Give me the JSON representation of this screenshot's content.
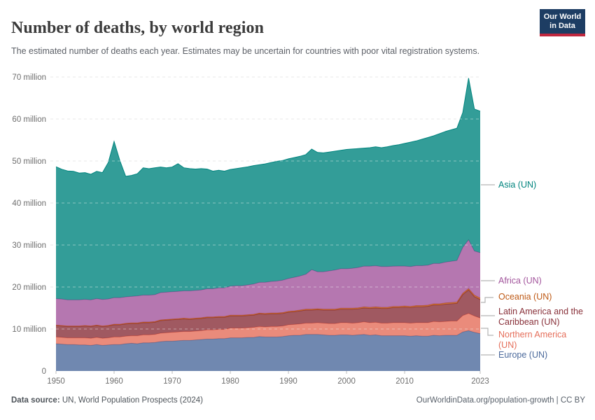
{
  "header": {
    "title": "Number of deaths, by world region",
    "subtitle": "The estimated number of deaths each year. Estimates may be uncertain for countries with poor vital registration systems.",
    "logo": {
      "line1": "Our World",
      "line2": "in Data"
    },
    "logo_colors": {
      "navy": "#1d3d63",
      "red": "#c0273e"
    }
  },
  "footer": {
    "source_label": "Data source:",
    "source_text": "UN, World Population Prospects (2024)",
    "license": "OurWorldinData.org/population-growth | CC BY"
  },
  "legend": [
    {
      "label": "Asia (UN)",
      "color": "#00847E"
    },
    {
      "label": "Africa (UN)",
      "color": "#A2559C"
    },
    {
      "label": "Oceania (UN)",
      "color": "#BE5915"
    },
    {
      "label": "Latin America and the Caribbean (UN)",
      "color": "#883039"
    },
    {
      "label": "Northern America (UN)",
      "color": "#E56E5A"
    },
    {
      "label": "Europe (UN)",
      "color": "#4C6A9C"
    }
  ],
  "chart_data": {
    "type": "area",
    "stacked": true,
    "title": "Number of deaths, by world region",
    "xlabel": "",
    "ylabel": "",
    "unit": "million deaths per year",
    "ylim_millions": [
      0,
      70
    ],
    "grid": "dashed-horizontal",
    "legend_position": "right",
    "x": [
      1950,
      1951,
      1952,
      1953,
      1954,
      1955,
      1956,
      1957,
      1958,
      1959,
      1960,
      1961,
      1962,
      1963,
      1964,
      1965,
      1966,
      1967,
      1968,
      1969,
      1970,
      1971,
      1972,
      1973,
      1974,
      1975,
      1976,
      1977,
      1978,
      1979,
      1980,
      1981,
      1982,
      1983,
      1984,
      1985,
      1986,
      1987,
      1988,
      1989,
      1990,
      1991,
      1992,
      1993,
      1994,
      1995,
      1996,
      1997,
      1998,
      1999,
      2000,
      2001,
      2002,
      2003,
      2004,
      2005,
      2006,
      2007,
      2008,
      2009,
      2010,
      2011,
      2012,
      2013,
      2014,
      2015,
      2016,
      2017,
      2018,
      2019,
      2020,
      2021,
      2022,
      2023
    ],
    "y_ticks": [
      {
        "value": 0,
        "label": "0"
      },
      {
        "value": 10,
        "label": "10 million"
      },
      {
        "value": 20,
        "label": "20 million"
      },
      {
        "value": 30,
        "label": "30 million"
      },
      {
        "value": 40,
        "label": "40 million"
      },
      {
        "value": 50,
        "label": "50 million"
      },
      {
        "value": 60,
        "label": "60 million"
      },
      {
        "value": 70,
        "label": "70 million"
      }
    ],
    "x_ticks": [
      1950,
      1960,
      1970,
      1980,
      1990,
      2000,
      2010,
      2023
    ],
    "series": [
      {
        "name": "Europe (UN)",
        "color": "#4C6A9C",
        "values_millions": [
          6.5,
          6.4,
          6.3,
          6.3,
          6.2,
          6.2,
          6.1,
          6.3,
          6.1,
          6.2,
          6.3,
          6.3,
          6.5,
          6.6,
          6.5,
          6.7,
          6.7,
          6.8,
          7.0,
          7.1,
          7.1,
          7.2,
          7.3,
          7.3,
          7.4,
          7.5,
          7.6,
          7.6,
          7.7,
          7.7,
          7.9,
          7.9,
          7.9,
          8.0,
          8.0,
          8.2,
          8.1,
          8.1,
          8.1,
          8.2,
          8.4,
          8.5,
          8.5,
          8.7,
          8.7,
          8.7,
          8.6,
          8.5,
          8.5,
          8.6,
          8.6,
          8.5,
          8.6,
          8.7,
          8.5,
          8.6,
          8.4,
          8.4,
          8.4,
          8.4,
          8.4,
          8.3,
          8.4,
          8.3,
          8.3,
          8.5,
          8.4,
          8.5,
          8.5,
          8.5,
          9.3,
          9.6,
          9.2,
          8.9
        ]
      },
      {
        "name": "Northern America (UN)",
        "color": "#E56E5A",
        "values_millions": [
          1.6,
          1.6,
          1.6,
          1.6,
          1.7,
          1.7,
          1.7,
          1.7,
          1.7,
          1.7,
          1.8,
          1.8,
          1.8,
          1.8,
          1.9,
          1.9,
          1.9,
          1.9,
          2.0,
          2.0,
          2.1,
          2.1,
          2.1,
          2.1,
          2.1,
          2.1,
          2.2,
          2.2,
          2.2,
          2.2,
          2.3,
          2.3,
          2.3,
          2.3,
          2.4,
          2.4,
          2.4,
          2.5,
          2.5,
          2.5,
          2.6,
          2.6,
          2.7,
          2.7,
          2.7,
          2.8,
          2.8,
          2.8,
          2.8,
          2.9,
          2.9,
          2.9,
          2.9,
          3.0,
          3.0,
          3.0,
          3.0,
          3.0,
          3.1,
          3.1,
          3.1,
          3.1,
          3.1,
          3.2,
          3.2,
          3.3,
          3.3,
          3.3,
          3.4,
          3.4,
          3.9,
          4.1,
          3.9,
          3.7
        ]
      },
      {
        "name": "Latin America and the Caribbean (UN)",
        "color": "#883039",
        "values_millions": [
          2.7,
          2.7,
          2.7,
          2.7,
          2.7,
          2.8,
          2.8,
          2.8,
          2.8,
          2.8,
          2.9,
          2.9,
          2.9,
          2.9,
          2.9,
          2.9,
          2.9,
          2.9,
          3.0,
          3.0,
          3.0,
          3.0,
          3.0,
          2.9,
          2.9,
          2.9,
          2.9,
          2.9,
          2.9,
          2.9,
          2.9,
          2.9,
          2.9,
          2.9,
          2.9,
          3.0,
          3.0,
          3.0,
          3.0,
          3.0,
          3.0,
          3.0,
          3.1,
          3.1,
          3.1,
          3.1,
          3.1,
          3.2,
          3.2,
          3.2,
          3.2,
          3.3,
          3.3,
          3.3,
          3.4,
          3.4,
          3.5,
          3.5,
          3.6,
          3.6,
          3.7,
          3.7,
          3.8,
          3.8,
          3.9,
          3.9,
          4.0,
          4.1,
          4.1,
          4.2,
          5.0,
          5.6,
          4.6,
          4.4
        ]
      },
      {
        "name": "Oceania (UN)",
        "color": "#BE5915",
        "values_millions": [
          0.13,
          0.13,
          0.13,
          0.13,
          0.14,
          0.14,
          0.14,
          0.14,
          0.14,
          0.15,
          0.15,
          0.15,
          0.15,
          0.16,
          0.16,
          0.16,
          0.16,
          0.17,
          0.17,
          0.17,
          0.17,
          0.17,
          0.18,
          0.18,
          0.18,
          0.18,
          0.18,
          0.19,
          0.19,
          0.19,
          0.19,
          0.19,
          0.2,
          0.2,
          0.2,
          0.2,
          0.21,
          0.21,
          0.21,
          0.21,
          0.22,
          0.22,
          0.22,
          0.23,
          0.23,
          0.23,
          0.24,
          0.24,
          0.24,
          0.25,
          0.25,
          0.25,
          0.25,
          0.26,
          0.26,
          0.26,
          0.27,
          0.27,
          0.27,
          0.28,
          0.28,
          0.28,
          0.29,
          0.29,
          0.29,
          0.3,
          0.3,
          0.31,
          0.31,
          0.32,
          0.32,
          0.33,
          0.36,
          0.36
        ]
      },
      {
        "name": "Africa (UN)",
        "color": "#A2559C",
        "values_millions": [
          6.3,
          6.3,
          6.2,
          6.2,
          6.2,
          6.2,
          6.2,
          6.3,
          6.3,
          6.3,
          6.3,
          6.3,
          6.3,
          6.3,
          6.4,
          6.4,
          6.4,
          6.4,
          6.5,
          6.5,
          6.5,
          6.5,
          6.5,
          6.6,
          6.6,
          6.6,
          6.7,
          6.7,
          6.8,
          6.8,
          6.9,
          7.0,
          7.0,
          7.1,
          7.2,
          7.3,
          7.4,
          7.5,
          7.6,
          7.7,
          7.8,
          8.0,
          8.1,
          8.3,
          9.4,
          8.8,
          8.9,
          9.1,
          9.3,
          9.4,
          9.4,
          9.5,
          9.6,
          9.7,
          9.8,
          9.8,
          9.7,
          9.7,
          9.6,
          9.6,
          9.5,
          9.5,
          9.5,
          9.5,
          9.5,
          9.6,
          9.6,
          9.7,
          9.8,
          9.9,
          10.9,
          11.6,
          10.5,
          10.8
        ]
      },
      {
        "name": "Asia (UN)",
        "color": "#00847E",
        "values_millions": [
          31.4,
          30.9,
          30.7,
          30.6,
          30.2,
          30.2,
          29.9,
          30.3,
          30.2,
          32.5,
          37.2,
          32.6,
          28.7,
          28.8,
          29.1,
          30.3,
          30.1,
          30.2,
          29.9,
          29.6,
          29.7,
          30.4,
          29.3,
          29.1,
          28.9,
          28.9,
          28.5,
          28.0,
          28.0,
          27.8,
          27.8,
          27.9,
          28.1,
          28.1,
          28.2,
          28.0,
          28.2,
          28.3,
          28.5,
          28.5,
          28.5,
          28.5,
          28.5,
          28.5,
          28.7,
          28.4,
          28.3,
          28.3,
          28.3,
          28.2,
          28.4,
          28.4,
          28.3,
          28.1,
          28.2,
          28.3,
          28.3,
          28.5,
          28.7,
          28.9,
          29.2,
          29.6,
          29.7,
          30.1,
          30.4,
          30.4,
          30.9,
          31.1,
          31.3,
          31.5,
          32.1,
          38.5,
          33.8,
          33.7
        ]
      }
    ]
  }
}
